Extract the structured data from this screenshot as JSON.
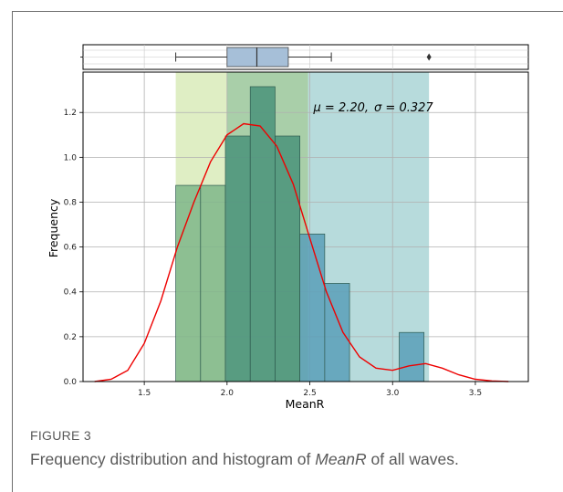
{
  "chart_data": {
    "type": "bar",
    "xlabel": "MeanR",
    "ylabel": "Frequency",
    "xlim": [
      1.13,
      3.82
    ],
    "ylim": [
      0,
      1.38
    ],
    "xticks": [
      1.5,
      2.0,
      2.5,
      3.0,
      3.5
    ],
    "yticks": [
      0.0,
      0.2,
      0.4,
      0.6,
      0.8,
      1.0,
      1.2
    ],
    "xtick_labels": [
      "1.5",
      "2.0",
      "2.5",
      "3.0",
      "3.5"
    ],
    "ytick_labels": [
      "0.0",
      "0.2",
      "0.4",
      "0.6",
      "0.8",
      "1.0",
      "1.2"
    ],
    "grid": true,
    "shaded_regions": [
      {
        "x0": 1.69,
        "x1": 2.0,
        "color": "#d4e8b0"
      },
      {
        "x0": 2.0,
        "x1": 2.49,
        "color": "#8cbf8c"
      },
      {
        "x0": 2.49,
        "x1": 3.22,
        "color": "#9fcfd0"
      }
    ],
    "histogram": {
      "bin_edges": [
        1.69,
        1.84,
        1.99,
        2.14,
        2.29,
        2.44,
        2.59,
        2.74,
        2.89,
        3.04,
        3.19
      ],
      "heights": [
        0.875,
        0.875,
        1.095,
        1.315,
        1.095,
        0.658,
        0.438,
        0.0,
        0.0,
        0.219
      ],
      "colors": [
        "#7fb68a",
        "#7fb68a",
        "#4a937a",
        "#4a937a",
        "#4a937a",
        "#5a9fb8",
        "#5a9fb8",
        "#5a9fb8",
        "#5a9fb8",
        "#5a9fb8"
      ]
    },
    "kde": {
      "color": "#ee0000",
      "x": [
        1.2,
        1.3,
        1.4,
        1.5,
        1.6,
        1.7,
        1.8,
        1.9,
        2.0,
        2.1,
        2.2,
        2.3,
        2.4,
        2.5,
        2.6,
        2.7,
        2.8,
        2.9,
        3.0,
        3.1,
        3.2,
        3.3,
        3.4,
        3.5,
        3.6,
        3.7
      ],
      "y": [
        0.0,
        0.01,
        0.05,
        0.17,
        0.36,
        0.6,
        0.8,
        0.98,
        1.1,
        1.15,
        1.14,
        1.05,
        0.88,
        0.64,
        0.4,
        0.22,
        0.11,
        0.06,
        0.05,
        0.07,
        0.08,
        0.06,
        0.03,
        0.01,
        0.003,
        0.0
      ]
    },
    "boxplot": {
      "whisker_low": 1.69,
      "q1": 2.0,
      "median": 2.18,
      "q3": 2.37,
      "whisker_high": 2.63,
      "outliers": [
        3.22
      ],
      "color": "#a6bfd8"
    },
    "annotation": {
      "mu_label": "μ = 2.20,",
      "sigma_label": "σ = 0.327",
      "x": 2.5,
      "y": 1.2
    }
  },
  "caption": {
    "label": "FIGURE 3",
    "text_before": "Frequency distribution and histogram of ",
    "text_italic": "MeanR",
    "text_after": " of all waves."
  }
}
